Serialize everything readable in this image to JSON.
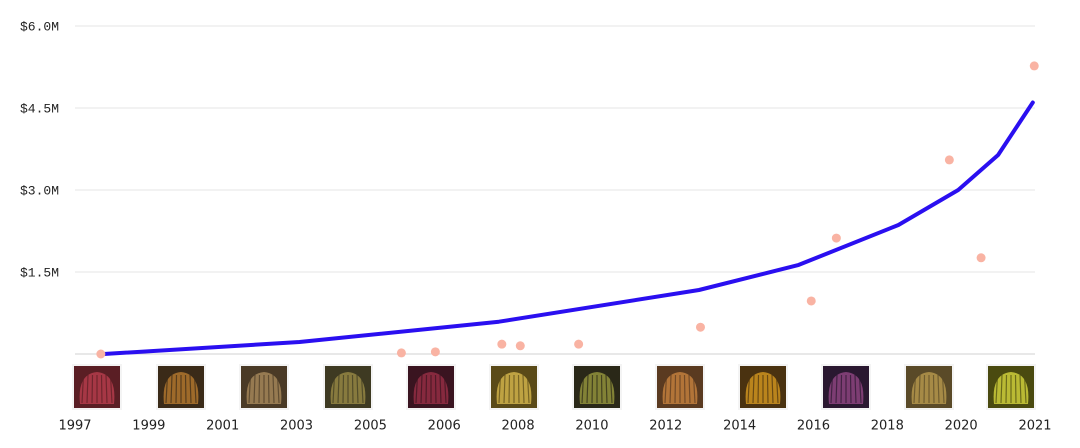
{
  "chart_data": {
    "type": "scatter",
    "xticks": [
      {
        "value": 0,
        "label": "1997"
      },
      {
        "value": 1,
        "label": "1999"
      },
      {
        "value": 2,
        "label": "2001"
      },
      {
        "value": 3,
        "label": "2003"
      },
      {
        "value": 4,
        "label": "2005"
      },
      {
        "value": 5,
        "label": "2006"
      },
      {
        "value": 6,
        "label": "2008"
      },
      {
        "value": 7,
        "label": "2010"
      },
      {
        "value": 8,
        "label": "2012"
      },
      {
        "value": 9,
        "label": "2014"
      },
      {
        "value": 10,
        "label": "2016"
      },
      {
        "value": 11,
        "label": "2018"
      },
      {
        "value": 12,
        "label": "2020"
      },
      {
        "value": 13,
        "label": "2021"
      }
    ],
    "xlim": [
      0,
      13
    ],
    "ylim": [
      0,
      6000000
    ],
    "yticks": [
      {
        "value": 1500000,
        "label": "$1.5M"
      },
      {
        "value": 3000000,
        "label": "$3.0M"
      },
      {
        "value": 4500000,
        "label": "$4.5M"
      },
      {
        "value": 6000000,
        "label": "$6.0M"
      }
    ],
    "grid": true,
    "series": [
      {
        "type": "line",
        "color": "#2a0ff0",
        "x": [
          0.39,
          3.04,
          5.74,
          8.45,
          9.8,
          11.15,
          11.96,
          12.5,
          12.97
        ],
        "values": [
          0,
          220000,
          590000,
          1170000,
          1630000,
          2360000,
          3000000,
          3640000,
          4600000
        ]
      },
      {
        "type": "scatter",
        "color": "#f9b3a3",
        "x": [
          0.35,
          4.42,
          4.88,
          5.78,
          6.03,
          6.82,
          8.47,
          9.97,
          10.31,
          11.84,
          12.27,
          12.99
        ],
        "values": [
          0,
          20000,
          40000,
          180000,
          150000,
          180000,
          490000,
          970000,
          2120000,
          3550000,
          1760000,
          5270000
        ]
      }
    ]
  }
}
